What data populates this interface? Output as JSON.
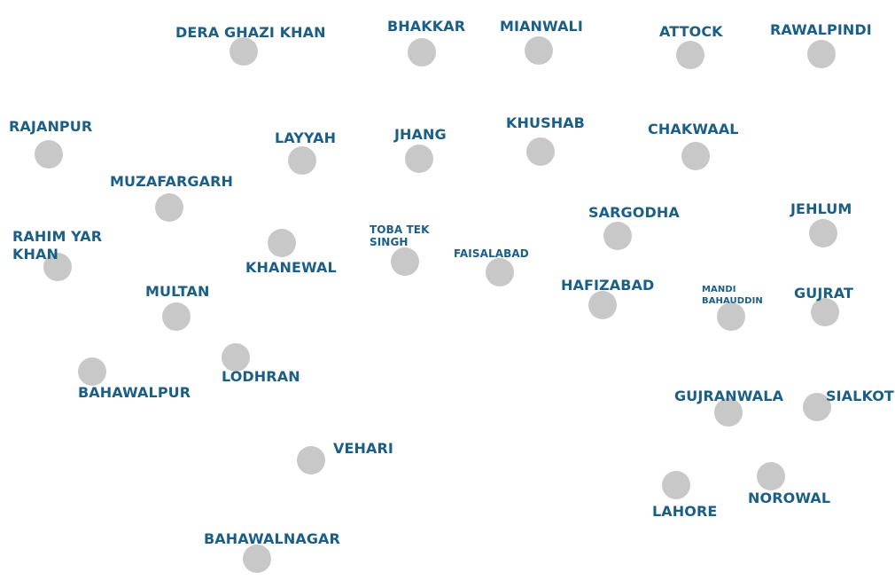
{
  "map": {
    "label_color": "#1b5e86",
    "dot_color": "#c8c8c8",
    "districts": [
      {
        "id": "dera-ghazi-khan",
        "name": "DERA GHAZI KHAN"
      },
      {
        "id": "bhakkar",
        "name": "BHAKKAR"
      },
      {
        "id": "mianwali",
        "name": "MIANWALI"
      },
      {
        "id": "attock",
        "name": "ATTOCK"
      },
      {
        "id": "rawalpindi",
        "name": "RAWALPINDI"
      },
      {
        "id": "rajanpur",
        "name": "RAJANPUR"
      },
      {
        "id": "layyah",
        "name": "LAYYAH"
      },
      {
        "id": "jhang",
        "name": "JHANG"
      },
      {
        "id": "khushab",
        "name": "KHUSHAB"
      },
      {
        "id": "chakwaal",
        "name": "CHAKWAAL"
      },
      {
        "id": "muzafargarh",
        "name": "MUZAFARGARH"
      },
      {
        "id": "sargodha",
        "name": "SARGODHA"
      },
      {
        "id": "jehlum",
        "name": "JEHLUM"
      },
      {
        "id": "rahim-yar-khan",
        "name": "RAHIM YAR\nKHAN"
      },
      {
        "id": "khanewal",
        "name": "KHANEWAL"
      },
      {
        "id": "toba-tek-singh",
        "name": "TOBA TEK\nSINGH"
      },
      {
        "id": "faisalabad",
        "name": "FAISALABAD"
      },
      {
        "id": "multan",
        "name": "MULTAN"
      },
      {
        "id": "hafizabad",
        "name": "HAFIZABAD"
      },
      {
        "id": "mandi-bahauddin",
        "name": "MANDI\nBAHAUDDIN"
      },
      {
        "id": "gujrat",
        "name": "GUJRAT"
      },
      {
        "id": "lodhran",
        "name": "LODHRAN"
      },
      {
        "id": "bahawalpur",
        "name": "BAHAWALPUR"
      },
      {
        "id": "gujranwala",
        "name": "GUJRANWALA"
      },
      {
        "id": "sialkot",
        "name": "SIALKOT"
      },
      {
        "id": "vehari",
        "name": "VEHARI"
      },
      {
        "id": "lahore",
        "name": "LAHORE"
      },
      {
        "id": "norowal",
        "name": "NOROWAL"
      },
      {
        "id": "bahawalnagar",
        "name": "BAHAWALNAGAR"
      }
    ]
  }
}
